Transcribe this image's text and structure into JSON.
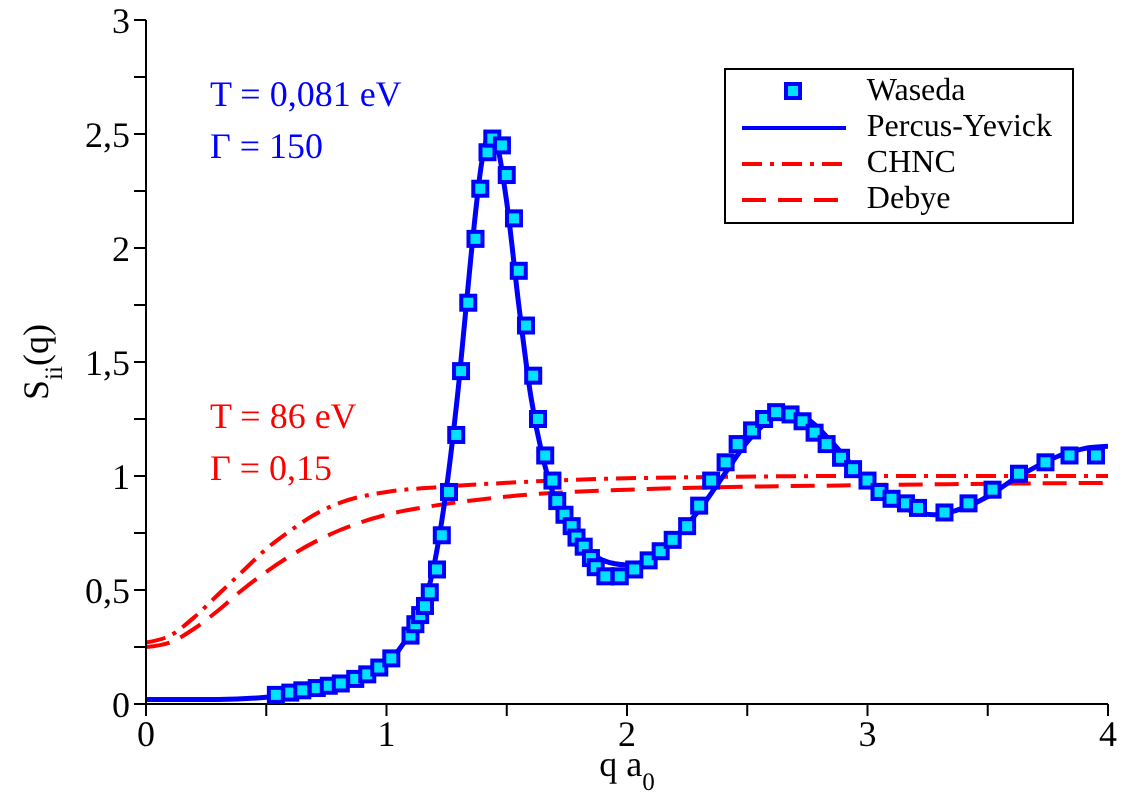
{
  "chart_data": {
    "type": "line",
    "xlabel": "q a$_{0}$",
    "ylabel": "S$_{ii}$(q)",
    "xlim": [
      0,
      4
    ],
    "xticks": [
      0,
      {
        "value": 0.5,
        "label": null
      },
      1,
      {
        "value": 1.5,
        "label": null
      },
      2,
      {
        "value": 2.5,
        "label": null
      },
      3,
      {
        "value": 3.5,
        "label": null
      },
      4
    ],
    "ylim": [
      0,
      3
    ],
    "yticks": [
      0,
      {
        "value": 0.25,
        "label": null
      },
      {
        "value": 0.5,
        "label": "0,5"
      },
      {
        "value": 0.75,
        "label": null
      },
      1,
      {
        "value": 1.25,
        "label": null
      },
      {
        "value": 1.5,
        "label": "1,5"
      },
      {
        "value": 1.75,
        "label": null
      },
      2,
      {
        "value": 2.25,
        "label": null
      },
      {
        "value": 2.5,
        "label": "2,5"
      },
      {
        "value": 2.75,
        "label": null
      },
      3
    ],
    "grid": false,
    "legend": "top right",
    "annotations": [
      "T = 0,081 eV",
      "Γ = 150",
      "T = 86 eV",
      "Γ = 0,15"
    ],
    "series": [
      {
        "name": "Waseda",
        "type": "scatter",
        "marker": "square",
        "color": "#0000ff",
        "x": [
          0.54,
          0.6,
          0.65,
          0.71,
          0.76,
          0.81,
          0.87,
          0.92,
          0.97,
          1.02,
          1.1,
          1.12,
          1.14,
          1.16,
          1.18,
          1.21,
          1.23,
          1.26,
          1.29,
          1.31,
          1.34,
          1.37,
          1.39,
          1.42,
          1.44,
          1.48,
          1.5,
          1.53,
          1.55,
          1.58,
          1.61,
          1.63,
          1.66,
          1.69,
          1.71,
          1.74,
          1.77,
          1.79,
          1.82,
          1.85,
          1.87,
          1.91,
          1.97,
          2.03,
          2.09,
          2.14,
          2.19,
          2.25,
          2.3,
          2.35,
          2.41,
          2.46,
          2.52,
          2.57,
          2.62,
          2.68,
          2.73,
          2.78,
          2.83,
          2.89,
          2.94,
          3.0,
          3.05,
          3.1,
          3.16,
          3.21,
          3.32,
          3.42,
          3.52,
          3.63,
          3.74,
          3.84,
          3.95
        ],
        "values": [
          0.04,
          0.05,
          0.06,
          0.07,
          0.08,
          0.09,
          0.11,
          0.13,
          0.16,
          0.2,
          0.3,
          0.35,
          0.39,
          0.43,
          0.49,
          0.59,
          0.74,
          0.93,
          1.18,
          1.46,
          1.76,
          2.04,
          2.26,
          2.42,
          2.48,
          2.45,
          2.32,
          2.13,
          1.9,
          1.66,
          1.44,
          1.25,
          1.09,
          0.98,
          0.89,
          0.83,
          0.78,
          0.73,
          0.69,
          0.64,
          0.6,
          0.56,
          0.56,
          0.59,
          0.63,
          0.67,
          0.72,
          0.78,
          0.87,
          0.98,
          1.06,
          1.14,
          1.2,
          1.25,
          1.28,
          1.27,
          1.24,
          1.19,
          1.14,
          1.08,
          1.03,
          0.98,
          0.93,
          0.9,
          0.88,
          0.86,
          0.84,
          0.88,
          0.94,
          1.01,
          1.06,
          1.09,
          1.09
        ]
      },
      {
        "name": "Percus-Yevick",
        "line_style": "solid",
        "color": "#0000ff",
        "x": [
          0,
          0.3,
          0.5,
          0.7,
          0.9,
          1.0,
          1.1,
          1.2,
          1.25,
          1.3,
          1.35,
          1.4,
          1.43,
          1.46,
          1.5,
          1.55,
          1.6,
          1.65,
          1.7,
          1.8,
          1.9,
          2.0,
          2.1,
          2.2,
          2.3,
          2.4,
          2.5,
          2.6,
          2.67,
          2.75,
          2.85,
          2.95,
          3.05,
          3.15,
          3.28,
          3.4,
          3.5,
          3.6,
          3.7,
          3.8,
          3.9,
          4.0
        ],
        "values": [
          0.02,
          0.02,
          0.03,
          0.06,
          0.12,
          0.18,
          0.32,
          0.62,
          0.95,
          1.4,
          1.95,
          2.4,
          2.5,
          2.45,
          2.2,
          1.75,
          1.35,
          1.08,
          0.9,
          0.72,
          0.63,
          0.61,
          0.64,
          0.73,
          0.85,
          1.0,
          1.15,
          1.25,
          1.28,
          1.25,
          1.15,
          1.03,
          0.92,
          0.86,
          0.83,
          0.86,
          0.91,
          0.98,
          1.04,
          1.09,
          1.12,
          1.13
        ]
      },
      {
        "name": "CHNC",
        "line_style": "dashdot",
        "color": "#ff0000",
        "x": [
          0,
          0.1,
          0.2,
          0.3,
          0.4,
          0.5,
          0.6,
          0.7,
          0.8,
          1.0,
          1.2,
          1.5,
          2,
          3,
          4
        ],
        "values": [
          0.27,
          0.3,
          0.38,
          0.48,
          0.58,
          0.68,
          0.76,
          0.83,
          0.88,
          0.93,
          0.95,
          0.97,
          0.99,
          1.0,
          1.0
        ]
      },
      {
        "name": "Debye",
        "line_style": "dashed",
        "color": "#ff0000",
        "x": [
          0,
          0.1,
          0.2,
          0.3,
          0.4,
          0.5,
          0.6,
          0.7,
          0.8,
          1.0,
          1.2,
          1.5,
          2,
          3,
          4
        ],
        "values": [
          0.25,
          0.27,
          0.33,
          0.41,
          0.5,
          0.58,
          0.65,
          0.71,
          0.76,
          0.83,
          0.87,
          0.91,
          0.94,
          0.96,
          0.97
        ]
      }
    ]
  }
}
